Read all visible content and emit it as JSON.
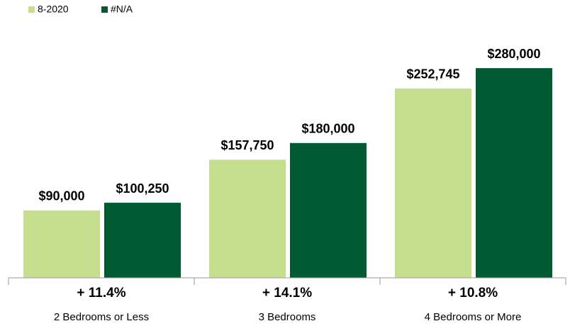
{
  "chart_data": {
    "type": "bar",
    "categories": [
      "2 Bedrooms or Less",
      "3 Bedrooms",
      "4 Bedrooms or More"
    ],
    "annotations": [
      "+ 11.4%",
      "+ 14.1%",
      "+ 10.8%"
    ],
    "series": [
      {
        "name": "8-2020",
        "color": "#c5df8f",
        "values": [
          90000,
          157750,
          252745
        ],
        "value_labels": [
          "$90,000",
          "$157,750",
          "$252,745"
        ]
      },
      {
        "name": "#N/A",
        "color": "#005a32",
        "values": [
          100250,
          180000,
          280000
        ],
        "value_labels": [
          "$100,250",
          "$180,000",
          "$280,000"
        ]
      }
    ],
    "ylim": [
      0,
      300000
    ]
  }
}
